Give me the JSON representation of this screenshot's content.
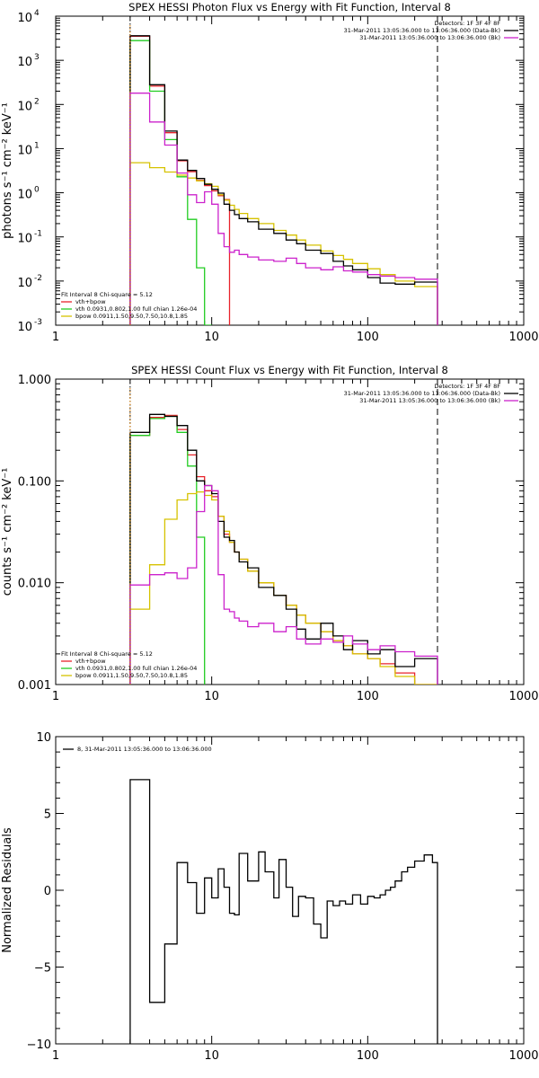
{
  "colors": {
    "background": "#ffffff",
    "axis": "#000000",
    "total": "#000000",
    "fit": "#e8232b",
    "vth": "#22cc22",
    "bpow": "#d6c200",
    "background_series": "#cc22cc",
    "marker_start": "#e08000"
  },
  "chart_data": [
    {
      "id": "photon",
      "type": "line",
      "step": true,
      "title": "SPEX HESSI Photon Flux vs Energy with Fit Function, Interval 8",
      "ylabel": "photons s⁻¹ cm⁻² keV⁻¹",
      "xscale": "log",
      "yscale": "log",
      "xlim": [
        1,
        1000
      ],
      "ylim": [
        0.001,
        10000
      ],
      "xticks": [
        1,
        10,
        100,
        1000
      ],
      "xtick_labels": [
        "1",
        "10",
        "100",
        "1000"
      ],
      "yticks": [
        0.001,
        0.01,
        0.1,
        1,
        10,
        100,
        1000,
        10000
      ],
      "ytick_labels": [
        {
          "base": "10",
          "exp": "-3"
        },
        {
          "base": "10",
          "exp": "-2"
        },
        {
          "base": "10",
          "exp": "-1"
        },
        {
          "base": "10",
          "exp": "0"
        },
        {
          "base": "10",
          "exp": "1"
        },
        {
          "base": "10",
          "exp": "2"
        },
        {
          "base": "10",
          "exp": "3"
        },
        {
          "base": "10",
          "exp": "4"
        }
      ],
      "vlines": [
        {
          "x": 3,
          "style": "dotted"
        },
        {
          "x": 280,
          "style": "dashed"
        }
      ],
      "legend_top": {
        "header": "Detectors: 1F 3F 4F 8F",
        "entries": [
          {
            "text": "31-Mar-2011 13:05:36.000 to 13:06:36.000 (Data-Bk)",
            "color": "#000000"
          },
          {
            "text": "31-Mar-2011 13:05:36.000 to 13:06:36.000 (Bk)",
            "color": "#cc22cc"
          }
        ]
      },
      "legend_bottom": {
        "header": "Fit Interval 8   Chi-square = 5.12",
        "entries": [
          {
            "text": "vth+bpow",
            "color": "#e8232b"
          },
          {
            "text": "vth 0.0931,0.802,1.00  full chian 1.26e-04",
            "color": "#22cc22"
          },
          {
            "text": "bpow 0.0911,1.50,9.50,7.50,10.8,1.85",
            "color": "#d6c200"
          }
        ]
      },
      "series": [
        {
          "name": "vth+bpow",
          "color": "#e8232b",
          "edges": [
            3,
            4,
            5,
            6,
            7,
            8,
            9,
            10,
            11,
            12,
            13
          ],
          "values": [
            3500,
            260,
            23,
            5.3,
            3.0,
            1.9,
            1.45,
            1.1,
            0.86,
            0.7,
            0.56
          ]
        },
        {
          "name": "vth",
          "color": "#22cc22",
          "edges": [
            3,
            4,
            5,
            6,
            7,
            8,
            9,
            10
          ],
          "values": [
            2800,
            200,
            16,
            2.3,
            0.25,
            0.02,
            0.001
          ]
        },
        {
          "name": "bpow",
          "color": "#d6c200",
          "edges": [
            3,
            4,
            5,
            6,
            7,
            8,
            9,
            10,
            11,
            12,
            13,
            14,
            15,
            17,
            20,
            25,
            30,
            35,
            40,
            50,
            60,
            70,
            80,
            100,
            120,
            150,
            200,
            280
          ],
          "values": [
            4.8,
            3.7,
            2.95,
            2.5,
            2.15,
            1.85,
            1.6,
            1.4,
            0.9,
            0.68,
            0.52,
            0.42,
            0.34,
            0.26,
            0.2,
            0.14,
            0.11,
            0.085,
            0.065,
            0.048,
            0.038,
            0.031,
            0.025,
            0.019,
            0.014,
            0.01,
            0.0075
          ]
        },
        {
          "name": "Data-Bk",
          "color": "#000000",
          "edges": [
            3,
            4,
            5,
            6,
            7,
            8,
            9,
            10,
            11,
            12,
            13,
            14,
            15,
            17,
            20,
            25,
            30,
            35,
            40,
            50,
            60,
            70,
            80,
            100,
            120,
            150,
            200,
            280
          ],
          "values": [
            3600,
            280,
            25,
            5.5,
            3.2,
            2.1,
            1.55,
            1.2,
            0.98,
            0.55,
            0.4,
            0.32,
            0.26,
            0.22,
            0.15,
            0.12,
            0.085,
            0.07,
            0.05,
            0.042,
            0.028,
            0.022,
            0.018,
            0.012,
            0.009,
            0.0085,
            0.0095,
            0.008
          ]
        },
        {
          "name": "Bk",
          "color": "#cc22cc",
          "edges": [
            3,
            4,
            5,
            6,
            7,
            8,
            9,
            10,
            11,
            12,
            13,
            14,
            15,
            17,
            20,
            25,
            30,
            35,
            40,
            50,
            60,
            70,
            80,
            100,
            120,
            150,
            200,
            280
          ],
          "values": [
            180,
            40,
            12,
            2.8,
            0.9,
            0.6,
            1.05,
            0.55,
            0.12,
            0.06,
            0.045,
            0.05,
            0.04,
            0.035,
            0.03,
            0.028,
            0.033,
            0.025,
            0.02,
            0.018,
            0.021,
            0.017,
            0.016,
            0.014,
            0.013,
            0.012,
            0.011,
            0.0095
          ]
        }
      ]
    },
    {
      "id": "count",
      "type": "line",
      "step": true,
      "title": "SPEX HESSI Count Flux vs Energy with Fit Function, Interval 8",
      "ylabel": "counts s⁻¹ cm⁻² keV⁻¹",
      "xscale": "log",
      "yscale": "log",
      "xlim": [
        1,
        1000
      ],
      "ylim": [
        0.001,
        1
      ],
      "xticks": [
        1,
        10,
        100,
        1000
      ],
      "xtick_labels": [
        "1",
        "10",
        "100",
        "1000"
      ],
      "yticks": [
        0.001,
        0.01,
        0.1,
        1
      ],
      "ytick_labels": [
        "0.001",
        "0.010",
        "0.100",
        "1.000"
      ],
      "vlines": [
        {
          "x": 3,
          "style": "dotted"
        },
        {
          "x": 280,
          "style": "dashed"
        }
      ],
      "legend_top": {
        "header": "Detectors: 1F 3F 4F 8F",
        "entries": [
          {
            "text": "31-Mar-2011 13:05:36.000 to 13:06:36.000 (Data-Bk)",
            "color": "#000000"
          },
          {
            "text": "31-Mar-2011 13:05:36.000 to 13:06:36.000 (Bk)",
            "color": "#cc22cc"
          }
        ]
      },
      "legend_bottom": {
        "header": "Fit Interval 8   Chi-square = 5.12",
        "entries": [
          {
            "text": "vth+bpow",
            "color": "#e8232b"
          },
          {
            "text": "vth 0.0931,0.802,1.00  full chian 1.26e-04",
            "color": "#22cc22"
          },
          {
            "text": "bpow 0.0911,1.50,9.50,7.50,10.8,1.85",
            "color": "#d6c200"
          }
        ]
      },
      "series": [
        {
          "name": "vth+bpow",
          "color": "#e8232b",
          "edges": [
            3,
            4,
            5,
            6,
            7,
            8,
            9,
            10,
            11,
            12,
            13,
            14,
            15,
            17,
            20,
            25,
            30,
            35,
            40,
            50,
            60,
            70,
            80,
            100,
            120,
            150,
            200,
            280
          ],
          "values": [
            0.28,
            0.42,
            0.44,
            0.32,
            0.18,
            0.11,
            0.08,
            0.07,
            0.045,
            0.03,
            0.025,
            0.02,
            0.017,
            0.013,
            0.01,
            0.0075,
            0.006,
            0.0048,
            0.004,
            0.0033,
            0.0027,
            0.0024,
            0.002,
            0.0018,
            0.0016,
            0.0013,
            0.001,
            0.0008
          ]
        },
        {
          "name": "vth",
          "color": "#22cc22",
          "edges": [
            3,
            4,
            5,
            6,
            7,
            8,
            9
          ],
          "values": [
            0.28,
            0.41,
            0.43,
            0.3,
            0.14,
            0.028,
            0.0008
          ]
        },
        {
          "name": "bpow",
          "color": "#d6c200",
          "edges": [
            3,
            4,
            5,
            6,
            7,
            8,
            9,
            10,
            11,
            12,
            13,
            14,
            15,
            17,
            20,
            25,
            30,
            35,
            40,
            50,
            60,
            70,
            80,
            100,
            120,
            150,
            200,
            280
          ],
          "values": [
            0.0055,
            0.015,
            0.042,
            0.065,
            0.075,
            0.078,
            0.072,
            0.065,
            0.045,
            0.032,
            0.025,
            0.02,
            0.017,
            0.013,
            0.01,
            0.0075,
            0.006,
            0.0048,
            0.004,
            0.0033,
            0.0027,
            0.0024,
            0.002,
            0.0018,
            0.0015,
            0.0012,
            0.001,
            0.0008
          ]
        },
        {
          "name": "Data-Bk",
          "color": "#000000",
          "edges": [
            3,
            4,
            5,
            6,
            7,
            8,
            9,
            10,
            11,
            12,
            13,
            14,
            15,
            17,
            20,
            25,
            30,
            35,
            40,
            50,
            60,
            70,
            80,
            100,
            120,
            150,
            200,
            280
          ],
          "values": [
            0.3,
            0.45,
            0.43,
            0.35,
            0.2,
            0.1,
            0.09,
            0.075,
            0.04,
            0.028,
            0.026,
            0.02,
            0.016,
            0.014,
            0.009,
            0.0075,
            0.0055,
            0.0035,
            0.0028,
            0.004,
            0.003,
            0.0022,
            0.0027,
            0.002,
            0.0022,
            0.0015,
            0.0018,
            0.0012
          ]
        },
        {
          "name": "Bk",
          "color": "#cc22cc",
          "edges": [
            3,
            4,
            5,
            6,
            7,
            8,
            9,
            10,
            11,
            12,
            13,
            14,
            15,
            17,
            20,
            25,
            30,
            35,
            40,
            50,
            60,
            70,
            80,
            100,
            120,
            150,
            200,
            280
          ],
          "values": [
            0.0095,
            0.012,
            0.0125,
            0.011,
            0.014,
            0.05,
            0.09,
            0.08,
            0.012,
            0.0055,
            0.0052,
            0.0045,
            0.0042,
            0.0037,
            0.004,
            0.0033,
            0.0037,
            0.0028,
            0.0025,
            0.0028,
            0.0026,
            0.003,
            0.0025,
            0.0022,
            0.0024,
            0.0021,
            0.0019,
            0.0014
          ]
        }
      ]
    },
    {
      "id": "residuals",
      "type": "line",
      "step": true,
      "title": "",
      "ylabel": "Normalized Residuals",
      "xscale": "log",
      "yscale": "linear",
      "xlim": [
        1,
        1000
      ],
      "ylim": [
        -10,
        10
      ],
      "xticks": [
        1,
        10,
        100,
        1000
      ],
      "xtick_labels": [
        "1",
        "10",
        "100",
        "1000"
      ],
      "yticks": [
        -10,
        -5,
        0,
        5,
        10
      ],
      "ytick_labels": [
        "−10",
        "−5",
        "0",
        "5",
        "10"
      ],
      "legend_top_left": {
        "text": "8, 31-Mar-2011 13:05:36.000 to 13:06:36.000",
        "color": "#000000"
      },
      "series": [
        {
          "name": "residual",
          "color": "#000000",
          "edges": [
            3,
            4,
            5,
            6,
            7,
            8,
            9,
            10,
            11,
            12,
            13,
            14,
            15,
            17,
            20,
            22,
            25,
            27,
            30,
            33,
            36,
            40,
            45,
            50,
            55,
            60,
            66,
            72,
            80,
            90,
            100,
            110,
            120,
            130,
            140,
            150,
            165,
            180,
            200,
            230,
            260,
            280
          ],
          "values": [
            7.2,
            -7.3,
            -3.5,
            1.8,
            0.5,
            -1.5,
            0.8,
            -0.5,
            1.4,
            0.2,
            -1.5,
            -1.6,
            2.4,
            0.6,
            2.5,
            1.2,
            -0.5,
            2.0,
            0.2,
            -1.7,
            -0.4,
            -0.5,
            -2.2,
            -3.1,
            -0.7,
            -1.0,
            -0.7,
            -0.9,
            -0.3,
            -0.9,
            -0.4,
            -0.5,
            -0.3,
            0.0,
            0.2,
            0.6,
            1.2,
            1.5,
            1.9,
            2.3,
            1.8
          ]
        }
      ]
    }
  ]
}
